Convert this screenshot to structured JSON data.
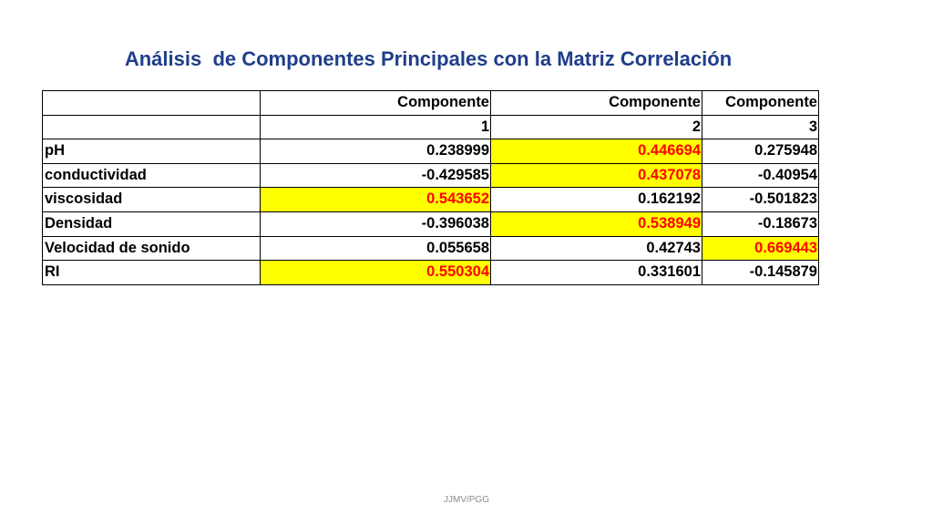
{
  "title": "Análisis  de Componentes Principales con la Matriz Correlación",
  "table": {
    "header_row_1": [
      "",
      "Componente",
      "Componente",
      "Componente"
    ],
    "header_row_2": [
      "",
      "1",
      "2",
      "3"
    ],
    "rows": [
      {
        "label": "pH",
        "values": [
          "0.238999",
          "0.446694",
          "0.275948"
        ],
        "highlight": [
          false,
          true,
          false
        ]
      },
      {
        "label": "conductividad",
        "values": [
          "-0.429585",
          "0.437078",
          "-0.40954"
        ],
        "highlight": [
          false,
          true,
          false
        ]
      },
      {
        "label": "viscosidad",
        "values": [
          "0.543652",
          "0.162192",
          "-0.501823"
        ],
        "highlight": [
          true,
          false,
          false
        ]
      },
      {
        "label": "Densidad",
        "values": [
          "-0.396038",
          "0.538949",
          "-0.18673"
        ],
        "highlight": [
          false,
          true,
          false
        ]
      },
      {
        "label": "Velocidad de sonido",
        "values": [
          "0.055658",
          "0.42743",
          "0.669443"
        ],
        "highlight": [
          false,
          false,
          true
        ]
      },
      {
        "label": "RI",
        "values": [
          "0.550304",
          "0.331601",
          "-0.145879"
        ],
        "highlight": [
          true,
          false,
          false
        ]
      }
    ]
  },
  "highlight_colors": {
    "background": "#ffff00",
    "text": "#ff0000"
  },
  "title_color": "#1f3e8a",
  "footer": "JJMV/PGG"
}
